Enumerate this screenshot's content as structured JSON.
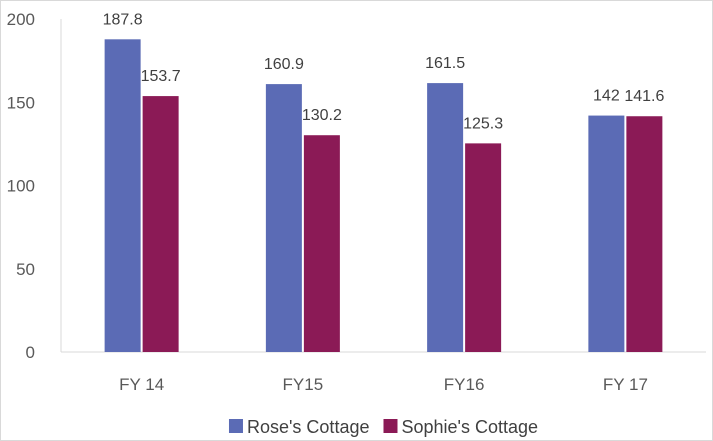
{
  "chart_data": {
    "type": "bar",
    "categories": [
      "FY 14",
      "FY15",
      "FY16",
      "FY 17"
    ],
    "series": [
      {
        "name": "Rose's Cottage",
        "values": [
          187.8,
          160.9,
          161.5,
          142
        ],
        "color": "#5b6bb5"
      },
      {
        "name": "Sophie's Cottage",
        "values": [
          153.7,
          130.2,
          125.3,
          141.6
        ],
        "color": "#8b1a56"
      }
    ],
    "data_labels": [
      [
        "187.8",
        "160.9",
        "161.5",
        "142"
      ],
      [
        "153.7",
        "130.2",
        "125.3",
        "141.6"
      ]
    ],
    "y_ticks": [
      "0",
      "50",
      "100",
      "150",
      "200"
    ],
    "ylim": [
      0,
      200
    ],
    "grid": false,
    "legend_position": "bottom"
  }
}
